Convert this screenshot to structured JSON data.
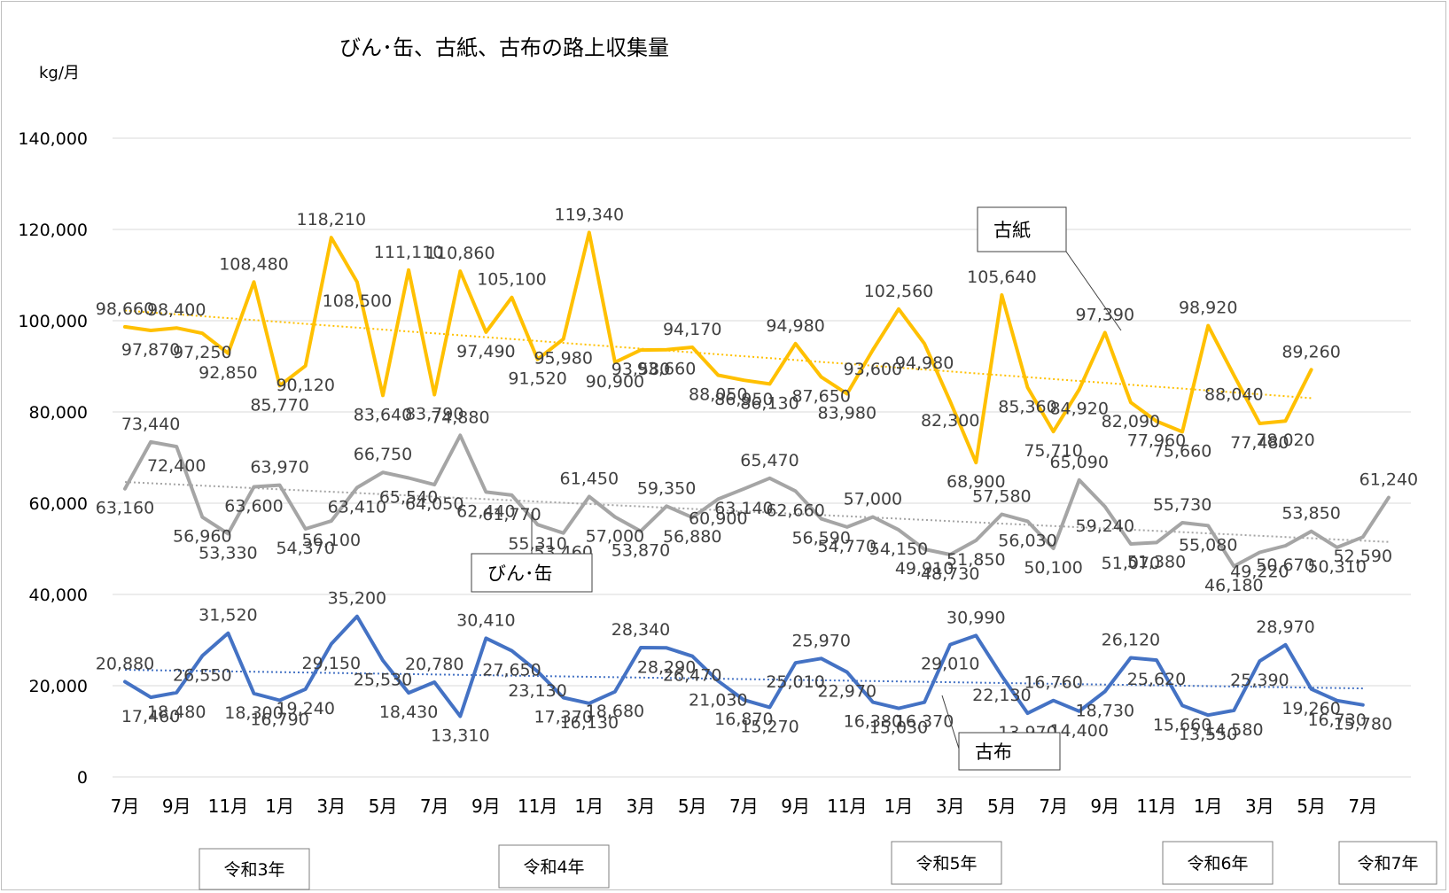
{
  "chart_data": {
    "type": "line",
    "title": "びん･缶、古紙、古布の路上収集量",
    "unit": "kg/月",
    "ylim": [
      0,
      140000
    ],
    "y_ticks": [
      "0",
      "20,000",
      "40,000",
      "60,000",
      "80,000",
      "100,000",
      "120,000",
      "140,000"
    ],
    "y_tick_values": [
      0,
      20000,
      40000,
      60000,
      80000,
      100000,
      120000,
      140000
    ],
    "x_tick_labels": [
      "7月",
      "9月",
      "11月",
      "1月",
      "3月",
      "5月",
      "7月",
      "9月",
      "11月",
      "1月",
      "3月",
      "5月",
      "7月",
      "9月",
      "11月",
      "1月",
      "3月",
      "5月",
      "7月",
      "9月",
      "11月",
      "1月",
      "3月",
      "5月",
      "7月"
    ],
    "eras": [
      "令和3年",
      "令和4年",
      "令和5年",
      "令和6年",
      "令和7年"
    ],
    "grid": true,
    "series": [
      {
        "name": "古紙",
        "color": "#FFC000",
        "trend_color": "#FFC000",
        "values": [
          98660,
          97870,
          98400,
          97250,
          92850,
          108480,
          85770,
          90120,
          118210,
          108500,
          83640,
          111110,
          83790,
          110860,
          97490,
          105100,
          91520,
          95980,
          119340,
          90900,
          93580,
          93660,
          94170,
          88050,
          86950,
          86130,
          94980,
          87650,
          83980,
          93600,
          102560,
          94980,
          82300,
          68900,
          105640,
          85360,
          75710,
          84920,
          97390,
          82090,
          77960,
          75660,
          98920,
          88040,
          77480,
          78020,
          89260
        ],
        "labels": [
          "98,660",
          "97,870",
          "98,400",
          "97,250",
          "92,850",
          "108,480",
          "85,770",
          "90,120",
          "118,210",
          "108,500",
          "83,640",
          "111,110",
          "83,790",
          "110,860",
          "97,490",
          "105,100",
          "91,520",
          "95,980",
          "119,340",
          "90,900",
          "93,580",
          "93,660",
          "94,170",
          "88,050",
          "86,950",
          "86,130",
          "94,980",
          "87,650",
          "83,980",
          "93,600",
          "102,560",
          "94,980",
          "82,300",
          "68,900",
          "105,640",
          "85,360",
          "75,710",
          "84,920",
          "97,390",
          "82,090",
          "77,960",
          "75,660",
          "98,920",
          "88,040",
          "77,480",
          "78,020",
          "89,260"
        ]
      },
      {
        "name": "びん･缶",
        "color": "#A5A5A5",
        "trend_color": "#A5A5A5",
        "values": [
          63160,
          73440,
          72400,
          56960,
          53330,
          63600,
          63970,
          54370,
          56100,
          63410,
          66750,
          65540,
          64050,
          74880,
          62440,
          61770,
          55310,
          53460,
          61450,
          57000,
          53870,
          59350,
          56880,
          60900,
          63140,
          65470,
          62660,
          56590,
          54770,
          57000,
          54150,
          49910,
          48730,
          51850,
          57580,
          56030,
          50100,
          65090,
          59240,
          51070,
          51380,
          55730,
          55080,
          46180,
          49220,
          50670,
          53850,
          50310,
          52590,
          61240
        ],
        "labels": [
          "63,160",
          "73,440",
          "72,400",
          "56,960",
          "53,330",
          "63,600",
          "63,970",
          "54,370",
          "56,100",
          "63,410",
          "66,750",
          "65,540",
          "64,050",
          "74,880",
          "62,440",
          "61,770",
          "55,310",
          "53,460",
          "61,450",
          "57,000",
          "53,870",
          "59,350",
          "56,880",
          "60,900",
          "63,140",
          "65,470",
          "62,660",
          "56,590",
          "54,770",
          "57,000",
          "54,150",
          "49,910",
          "48,730",
          "51,850",
          "57,580",
          "56,030",
          "50,100",
          "65,090",
          "59,240",
          "51,070",
          "51,380",
          "55,730",
          "55,080",
          "46,180",
          "49,220",
          "50,670",
          "53,850",
          "50,310",
          "52,590",
          "61,240"
        ]
      },
      {
        "name": "古布",
        "color": "#4472C4",
        "trend_color": "#4472C4",
        "values": [
          20880,
          17460,
          18480,
          26550,
          31520,
          18300,
          16790,
          19240,
          29150,
          35200,
          25530,
          18430,
          20780,
          13310,
          30410,
          27650,
          23130,
          17370,
          16130,
          18680,
          28340,
          28290,
          26470,
          21030,
          16870,
          15270,
          25010,
          25970,
          22970,
          16380,
          15030,
          16370,
          29010,
          30990,
          22130,
          13970,
          16760,
          14400,
          18730,
          26120,
          25620,
          15660,
          13550,
          14580,
          25390,
          28970,
          19260,
          16730,
          15780
        ],
        "labels": [
          "20,880",
          "17,460",
          "18,480",
          "26,550",
          "31,520",
          "18,300",
          "16,790",
          "19,240",
          "29,150",
          "35,200",
          "25,530",
          "18,430",
          "20,780",
          "13,310",
          "30,410",
          "27,650",
          "23,130",
          "17,370",
          "16,130",
          "18,680",
          "28,340",
          "28,290",
          "26,470",
          "21,030",
          "16,870",
          "15,270",
          "25,010",
          "25,970",
          "22,970",
          "16,380",
          "15,030",
          "16,370",
          "29,010",
          "30,990",
          "22,130",
          "13,970",
          "16,760",
          "14,400",
          "18,730",
          "26,120",
          "25,620",
          "15,660",
          "13,550",
          "14,580",
          "25,390",
          "28,970",
          "19,260",
          "16,730",
          "15,780"
        ]
      }
    ],
    "callouts": [
      "古紙",
      "びん･缶",
      "古布"
    ]
  }
}
